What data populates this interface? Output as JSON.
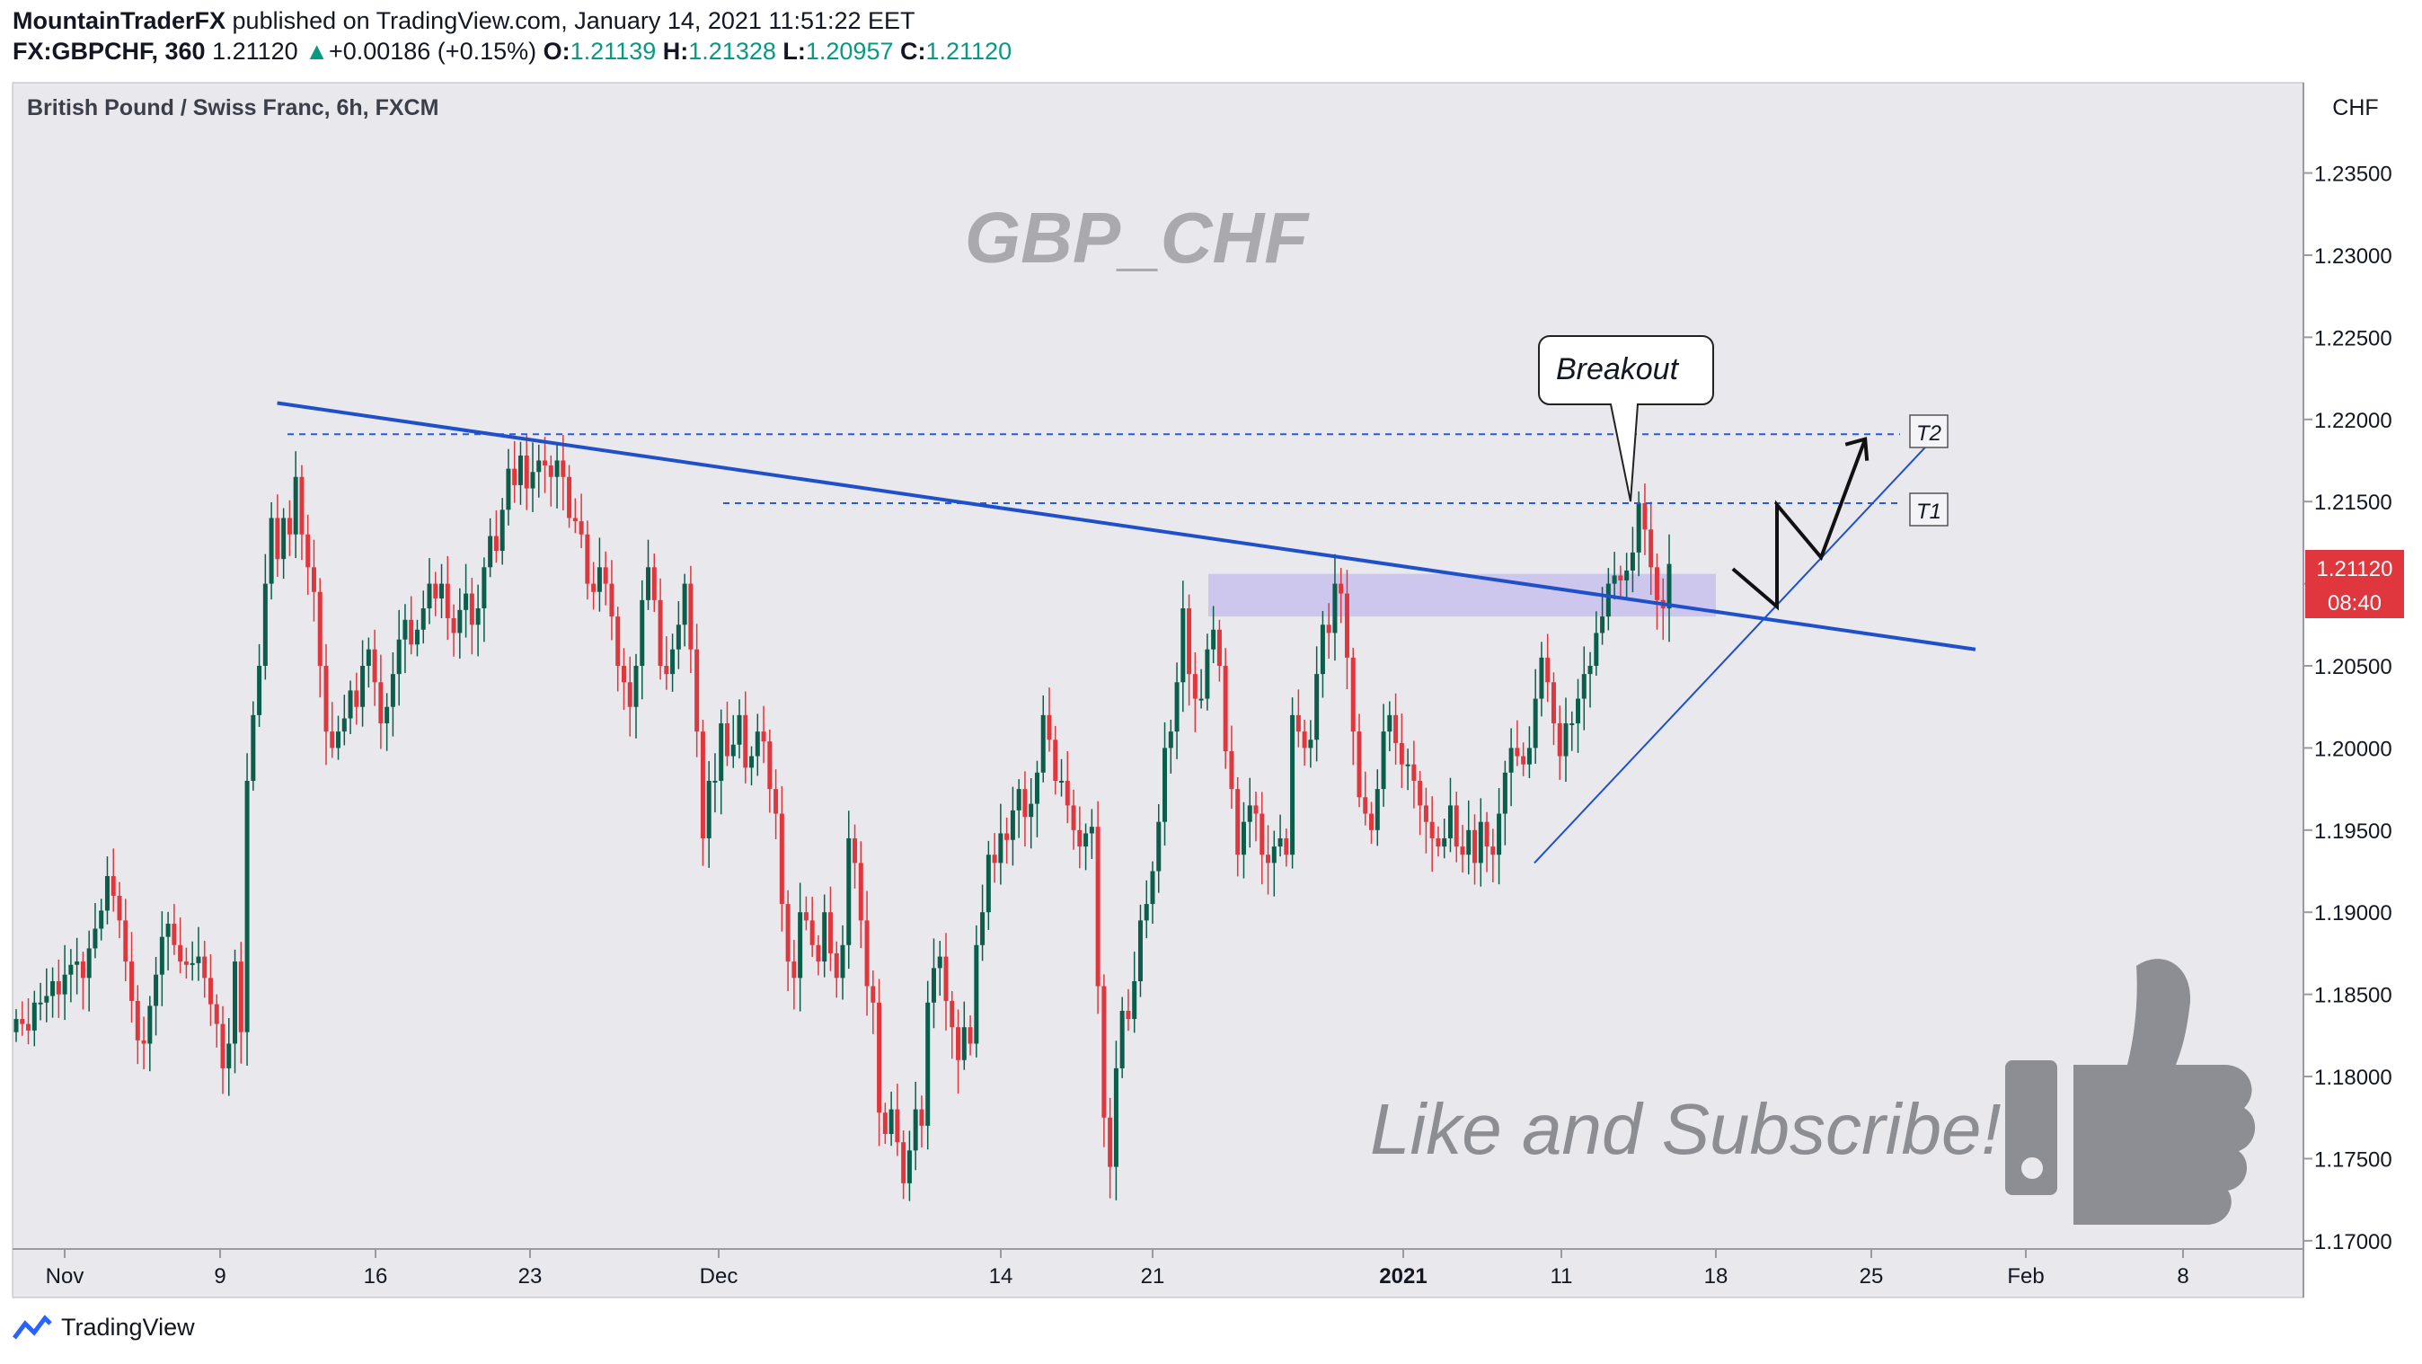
{
  "header": {
    "author": "MountainTraderFX",
    "published_text": "published on TradingView.com, January 14, 2021 11:51:22 EET",
    "symbol": "FX:GBPCHF, 360",
    "last": "1.21120",
    "change": "+0.00186 (+0.15%)",
    "open_label": "O:",
    "open": "1.21139",
    "high_label": "H:",
    "high": "1.21328",
    "low_label": "L:",
    "low": "1.20957",
    "close_label": "C:",
    "close": "1.21120"
  },
  "pane": {
    "instrument": "British Pound / Swiss Franc, 6h, FXCM",
    "watermark": "GBP_CHF",
    "cta": "Like and Subscribe!",
    "currency": "CHF",
    "price_tag": "1.21120",
    "countdown": "08:40"
  },
  "annotations": {
    "breakout": "Breakout",
    "t1": "T1",
    "t2": "T2"
  },
  "footer": {
    "brand": "TradingView"
  },
  "colors": {
    "up": "#0b5e4b",
    "down": "#e0363d",
    "trendline": "#1f4fc9",
    "zone": "#c8c0ec",
    "price_tag": "#e0363d"
  },
  "chart_data": {
    "type": "candlestick",
    "ylim": [
      1.1695,
      1.2405
    ],
    "y_ticks": [
      "1.17000",
      "1.17500",
      "1.18000",
      "1.18500",
      "1.19000",
      "1.19500",
      "1.20000",
      "1.20500",
      "1.21000",
      "1.21500",
      "1.22000",
      "1.22500",
      "1.23000",
      "1.23500"
    ],
    "x_ticks": [
      "Nov",
      "9",
      "16",
      "23",
      "Dec",
      "14",
      "21",
      "2021",
      "11",
      "18",
      "25",
      "Feb",
      "8"
    ],
    "levels": [
      {
        "name": "T2",
        "value": 1.2191
      },
      {
        "name": "T1",
        "value": 1.2149
      }
    ],
    "zone": {
      "from": 1.208,
      "to": 1.2106
    },
    "trendlines": [
      {
        "from": [
          "2020-11-11",
          1.221
        ],
        "to": [
          "2021-01-27",
          1.206
        ]
      },
      {
        "from": [
          "2021-01-07",
          1.193
        ],
        "to": [
          "2021-01-25",
          1.2187
        ]
      }
    ],
    "projection": [
      [
        "2021-01-16",
        1.2109
      ],
      [
        "2021-01-18",
        1.2086
      ],
      [
        "2021-01-18",
        1.2148
      ],
      [
        "2021-01-20",
        1.2116
      ],
      [
        "2021-01-22",
        1.2188
      ]
    ],
    "closes": [
      {
        "date": "2020-11-02",
        "values": [
          1.1835,
          1.1832,
          1.1828,
          1.1845,
          1.1845,
          1.1849,
          1.1858,
          1.185,
          1.1862,
          1.1868,
          1.187,
          1.186,
          1.1878,
          1.189,
          1.1901,
          1.1922,
          1.191,
          1.1895
        ]
      },
      {
        "date": "2020-11-09",
        "values": [
          1.187,
          1.1846,
          1.1822,
          1.182,
          1.1843,
          1.1862,
          1.1885,
          1.1893,
          1.188,
          1.187,
          1.1868,
          1.1869,
          1.1873,
          1.186,
          1.1844,
          1.1832,
          1.1805,
          1.182
        ]
      },
      {
        "date": "2020-11-09",
        "values": [
          1.187,
          1.1827,
          1.198,
          1.202,
          1.205,
          1.21,
          1.214,
          1.2115,
          1.214,
          1.213,
          1.2165,
          1.213,
          1.211,
          1.2095,
          1.205,
          1.201,
          1.2
        ]
      },
      {
        "date": "2020-11-16",
        "values": [
          1.201,
          1.2018,
          1.2035,
          1.2025,
          1.205,
          1.206,
          1.204,
          1.2015,
          1.2025,
          1.2045,
          1.2066,
          1.2078,
          1.2063,
          1.2072,
          1.2085,
          1.21,
          1.2091,
          1.21,
          1.2079
        ]
      },
      {
        "date": "2020-11-23",
        "values": [
          1.207,
          1.2084,
          1.2094,
          1.2075,
          1.2085,
          1.211,
          1.2129,
          1.212,
          1.2145,
          1.217,
          1.216,
          1.2178,
          1.2158,
          1.2168,
          1.2175,
          1.2172,
          1.2165,
          1.2175,
          1.2165
        ]
      },
      {
        "date": "2020-11-30",
        "values": [
          1.214,
          1.2138,
          1.213,
          1.21,
          1.2095,
          1.211,
          1.21,
          1.208,
          1.205,
          1.204,
          1.2025,
          1.205,
          1.209,
          1.211,
          1.209,
          1.205,
          1.2045,
          1.206,
          1.2075,
          1.21
        ]
      },
      {
        "date": "2020-12-07",
        "values": [
          1.206,
          1.201,
          1.1945,
          1.198,
          1.198,
          1.2015,
          1.1995,
          1.2002,
          1.202,
          1.1988,
          1.1995,
          1.201,
          1.2004,
          1.1975,
          1.196,
          1.1905,
          1.187,
          1.186,
          1.19
        ]
      },
      {
        "date": "2020-12-14",
        "values": [
          1.1895,
          1.188,
          1.187,
          1.19,
          1.1875,
          1.186,
          1.188,
          1.1945,
          1.193,
          1.1895,
          1.1855,
          1.1845,
          1.1778,
          1.1765,
          1.178,
          1.176,
          1.1735,
          1.1755,
          1.178,
          1.177
        ]
      },
      {
        "date": "2020-12-21",
        "values": [
          1.1845,
          1.1866,
          1.1873,
          1.1846,
          1.183,
          1.181,
          1.183,
          1.182,
          1.188,
          1.19,
          1.1935,
          1.193,
          1.1948,
          1.1944,
          1.1962,
          1.1975,
          1.1958,
          1.1966,
          1.1985,
          1.202
        ]
      },
      {
        "date": "2020-12-28",
        "values": [
          1.2005,
          1.198,
          1.198,
          1.1965,
          1.195,
          1.194,
          1.1948,
          1.1952,
          1.1855,
          1.1775,
          1.1745,
          1.1805,
          1.184,
          1.1835,
          1.1858,
          1.1895,
          1.1905,
          1.1925,
          1.1955,
          1.2
        ]
      },
      {
        "date": "2021-01-04",
        "values": [
          1.201,
          1.204,
          1.2085,
          1.2045,
          1.203,
          1.203,
          1.206,
          1.2072,
          1.205,
          1.1998,
          1.1975,
          1.1935,
          1.1955,
          1.1965,
          1.196,
          1.1935,
          1.193,
          1.194,
          1.1945,
          1.1935
        ]
      },
      {
        "date": "2021-01-04",
        "values": [
          1.202,
          1.201,
          1.2,
          1.2005,
          1.2045,
          1.2075,
          1.207,
          1.21,
          1.2094,
          1.2055,
          1.201,
          1.197,
          1.196,
          1.195,
          1.1975,
          1.201,
          1.202,
          1.2003,
          1.199
        ]
      },
      {
        "date": "2021-01-11",
        "values": [
          1.199,
          1.198,
          1.1965,
          1.1955,
          1.1945,
          1.194,
          1.1945,
          1.1965,
          1.194,
          1.1935,
          1.195,
          1.193,
          1.1955,
          1.194,
          1.1935,
          1.196,
          1.1985,
          1.2,
          1.1995
        ]
      },
      {
        "date": "2021-01-11",
        "values": [
          1.199,
          1.2,
          1.203,
          1.2055,
          1.204,
          1.2015,
          1.1995,
          1.2015,
          1.2015,
          1.203,
          1.2045,
          1.205,
          1.207,
          1.208,
          1.21,
          1.2105,
          1.2102,
          1.2108,
          1.2119,
          1.2149,
          1.2133,
          1.211,
          1.209,
          1.2085,
          1.2112
        ]
      }
    ]
  }
}
